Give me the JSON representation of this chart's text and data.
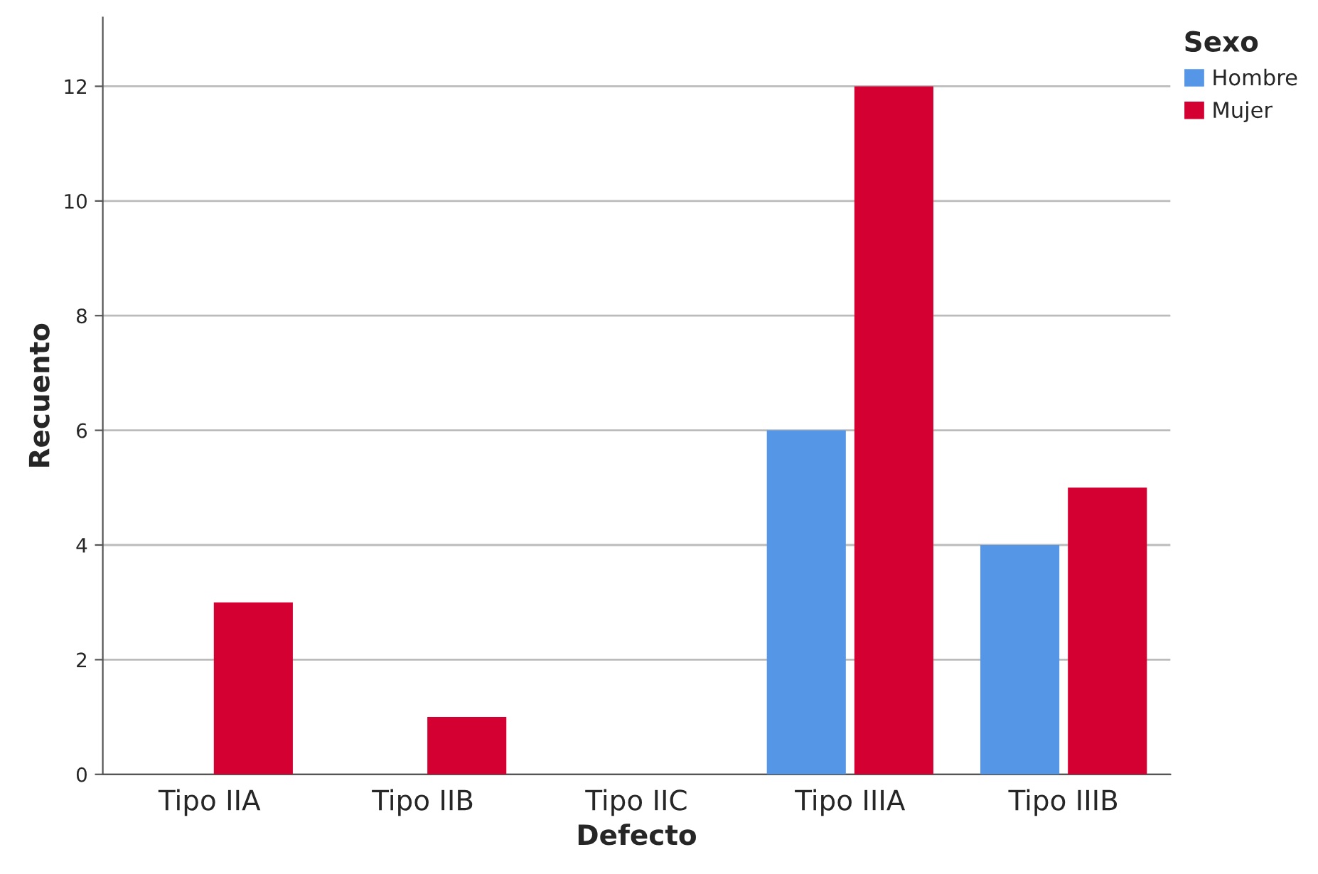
{
  "chart_data": {
    "type": "bar",
    "xlabel": "Defecto",
    "ylabel": "Recuento",
    "legend_title": "Sexo",
    "categories": [
      "Tipo IIA",
      "Tipo IIB",
      "Tipo IIC",
      "Tipo IIIA",
      "Tipo IIIB"
    ],
    "series": [
      {
        "name": "Hombre",
        "color": "#5596e6",
        "values": [
          null,
          null,
          null,
          6,
          4
        ]
      },
      {
        "name": "Mujer",
        "color": "#d40032",
        "values": [
          3,
          1,
          null,
          12,
          5
        ]
      }
    ],
    "ylim": [
      0,
      13.2
    ],
    "yticks": [
      0,
      2,
      4,
      6,
      8,
      10,
      12
    ],
    "grid": "y",
    "legend": "top right"
  }
}
